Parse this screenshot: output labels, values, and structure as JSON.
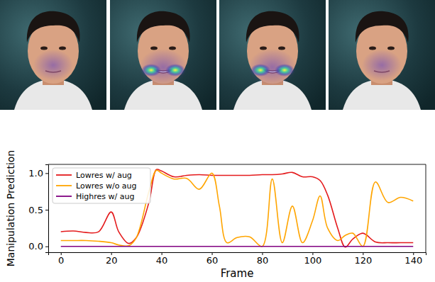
{
  "chart_data": {
    "type": "line",
    "x_label": "Frame",
    "y_label": "Manipulation Prediction",
    "x": [
      0,
      5,
      10,
      15,
      20,
      23,
      27,
      30,
      35,
      38,
      40,
      45,
      50,
      55,
      60,
      63,
      66,
      70,
      75,
      80,
      84,
      88,
      92,
      96,
      100,
      103,
      106,
      110,
      113,
      116,
      120,
      125,
      130,
      135,
      140
    ],
    "series": [
      {
        "name": "Lowres w/ aug",
        "color": "#e41a1c",
        "values": [
          0.2,
          0.21,
          0.19,
          0.2,
          0.47,
          0.2,
          0.04,
          0.12,
          0.6,
          1.05,
          1.03,
          0.95,
          0.97,
          0.98,
          0.97,
          0.97,
          0.97,
          0.97,
          0.97,
          0.98,
          0.98,
          0.99,
          1.01,
          0.95,
          0.95,
          0.9,
          0.7,
          0.25,
          -0.01,
          0.1,
          0.18,
          0.06,
          0.05,
          0.05,
          0.05
        ]
      },
      {
        "name": "Lowres w/o aug",
        "color": "#ffa500",
        "values": [
          0.08,
          0.08,
          0.08,
          0.07,
          0.05,
          0.02,
          0.01,
          0.12,
          0.75,
          1.04,
          1.0,
          0.92,
          0.93,
          0.78,
          1.0,
          0.55,
          0.05,
          0.12,
          0.13,
          0.0,
          0.92,
          0.05,
          0.55,
          0.05,
          0.35,
          0.69,
          0.25,
          0.08,
          0.15,
          0.18,
          0.0,
          0.88,
          0.6,
          0.67,
          0.62
        ]
      },
      {
        "name": "Highres w/ aug",
        "color": "#800080",
        "values": [
          0,
          0,
          0,
          0,
          0,
          0,
          0,
          0,
          0,
          0,
          0,
          0,
          0,
          0,
          0,
          0,
          0,
          0,
          0,
          0,
          0,
          0,
          0,
          0,
          0,
          0,
          0,
          0,
          0,
          0,
          0,
          0,
          0,
          0,
          0
        ]
      }
    ],
    "xlim": [
      -5,
      145
    ],
    "xticks": [
      0,
      20,
      40,
      60,
      80,
      100,
      120,
      140
    ],
    "ylim": [
      -0.08,
      1.12
    ],
    "yticks": [
      {
        "value": 0,
        "label": "0.0"
      },
      {
        "value": 0.5,
        "label": "0.5"
      },
      {
        "value": 1,
        "label": "1.0"
      }
    ],
    "legend": "upper left",
    "grid": false
  }
}
